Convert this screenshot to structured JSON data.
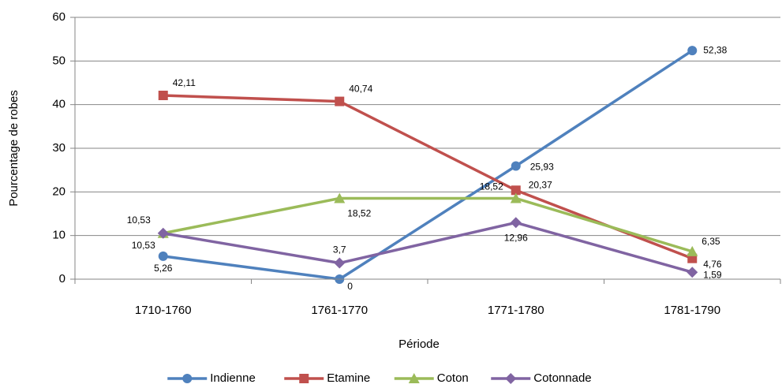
{
  "chart_data": {
    "type": "line",
    "categories": [
      "1710-1760",
      "1761-1770",
      "1771-1780",
      "1781-1790"
    ],
    "x_label": "Période",
    "y_label": "Pourcentage de robes",
    "ylim": [
      0,
      60
    ],
    "yticks": [
      0,
      10,
      20,
      30,
      40,
      50,
      60
    ],
    "grid": true,
    "legend": "bottom",
    "series": [
      {
        "name": "Indienne",
        "color": "#4f81bd",
        "label_color": "#3c5f8f",
        "marker": "circle",
        "values": [
          5.26,
          0,
          25.93,
          52.38
        ],
        "value_labels": [
          "5,26",
          "0",
          "25,93",
          "52,38"
        ]
      },
      {
        "name": "Etamine",
        "color": "#c0504d",
        "label_color": "#ff0000",
        "marker": "square",
        "values": [
          42.11,
          40.74,
          20.37,
          4.76
        ],
        "value_labels": [
          "42,11",
          "40,74",
          "20,37",
          "4,76"
        ]
      },
      {
        "name": "Coton",
        "color": "#9bbb59",
        "label_color": "#00b050",
        "marker": "triangle",
        "values": [
          10.53,
          18.52,
          18.52,
          6.35
        ],
        "value_labels": [
          "10,53",
          "18,52",
          "18,52",
          "6,35"
        ]
      },
      {
        "name": "Cotonnade",
        "color": "#8064a2",
        "label_color": "#7030a0",
        "marker": "diamond",
        "values": [
          10.53,
          3.7,
          12.96,
          1.59
        ],
        "value_labels": [
          "10,53",
          "3,7",
          "12,96",
          "1,59"
        ]
      }
    ]
  }
}
